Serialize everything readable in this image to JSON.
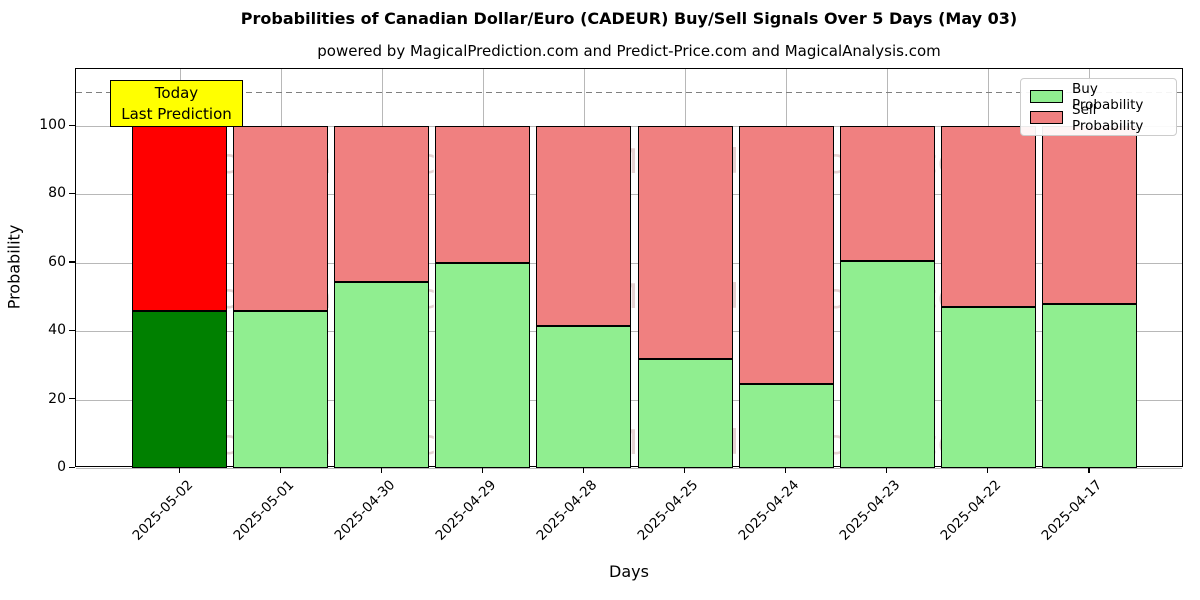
{
  "title": "Probabilities of Canadian Dollar/Euro (CADEUR) Buy/Sell Signals Over 5 Days (May 03)",
  "subtitle": "powered by MagicalPrediction.com and Predict-Price.com and MagicalAnalysis.com",
  "chart_data": {
    "type": "bar",
    "stacked": true,
    "title": "Probabilities of Canadian Dollar/Euro (CADEUR) Buy/Sell Signals Over 5 Days (May 03)",
    "subtitle": "powered by MagicalPrediction.com and Predict-Price.com and MagicalAnalysis.com",
    "xlabel": "Days",
    "ylabel": "Probability",
    "categories": [
      "2025-05-02",
      "2025-05-01",
      "2025-04-30",
      "2025-04-29",
      "2025-04-28",
      "2025-04-25",
      "2025-04-24",
      "2025-04-23",
      "2025-04-22",
      "2025-04-17"
    ],
    "series": [
      {
        "name": "Buy Probability",
        "color": "#90EE90",
        "values": [
          46,
          46,
          54.5,
          60,
          41.5,
          32,
          24.5,
          60.5,
          47,
          48
        ]
      },
      {
        "name": "Sell Probability",
        "color": "#F08080",
        "values": [
          54,
          54,
          45.5,
          40,
          58.5,
          68,
          75.5,
          39.5,
          53,
          52
        ]
      }
    ],
    "highlight_first_bar": {
      "buy_color": "#008000",
      "sell_color": "#FF0000"
    },
    "yticks": [
      0,
      20,
      40,
      60,
      80,
      100
    ],
    "ylim": [
      0,
      116.7
    ],
    "dashed_line_y": 110,
    "grid": true,
    "legend_position": "upper right",
    "bar_edge_color": "#000000"
  },
  "annotation": {
    "line1": "Today",
    "line2": "Last Prediction",
    "bg_color": "#ffff00"
  },
  "watermarks": {
    "left": "MagicalAnalysis.com",
    "right": "MagicalPrediction.com"
  },
  "colors": {
    "buy": "#90EE90",
    "sell": "#F08080",
    "buy_today": "#008000",
    "sell_today": "#FF0000",
    "grid": "#b8b8b8",
    "dashed_line": "#7f7f7f",
    "annotation_bg": "#ffff00"
  }
}
